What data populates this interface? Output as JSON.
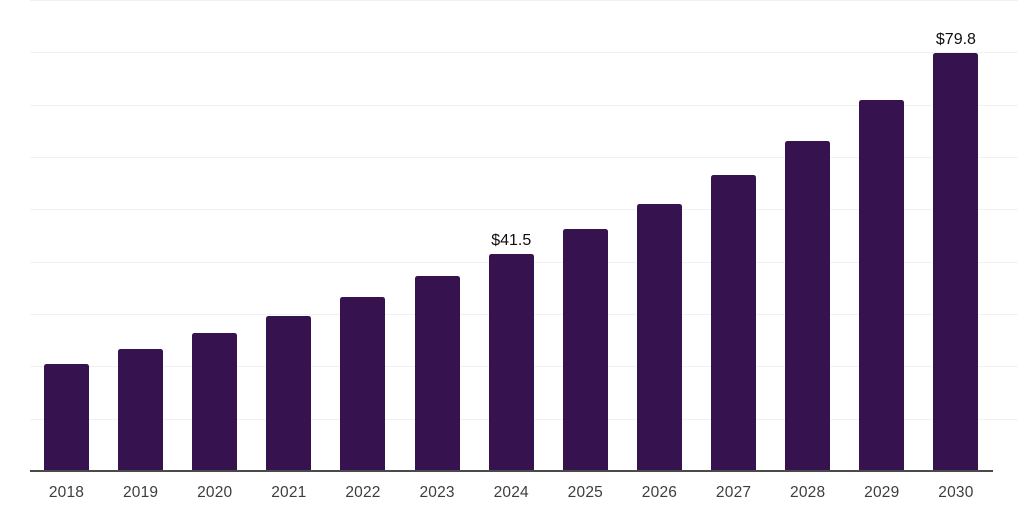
{
  "chart_data": {
    "type": "bar",
    "title": "",
    "xlabel": "",
    "ylabel": "",
    "categories": [
      "2018",
      "2019",
      "2020",
      "2021",
      "2022",
      "2023",
      "2024",
      "2025",
      "2026",
      "2027",
      "2028",
      "2029",
      "2030"
    ],
    "values": [
      20.5,
      23.3,
      26.4,
      29.6,
      33.3,
      37.2,
      41.5,
      46.2,
      51.1,
      56.6,
      63.1,
      70.8,
      79.8
    ],
    "data_labels": {
      "2024": "$41.5",
      "2030": "$79.8"
    },
    "unit_prefix": "$",
    "ylim": [
      0,
      90
    ],
    "gridline_step": 10,
    "grid": true,
    "legend": false,
    "y_axis_labels_visible": false,
    "colors": {
      "bar": "#36124E",
      "axis_line": "#4a4a4a",
      "gridline": "#f1f1f1",
      "tick_label": "#3d3d3d",
      "data_label": "#0f0f0f",
      "background": "#ffffff"
    }
  }
}
